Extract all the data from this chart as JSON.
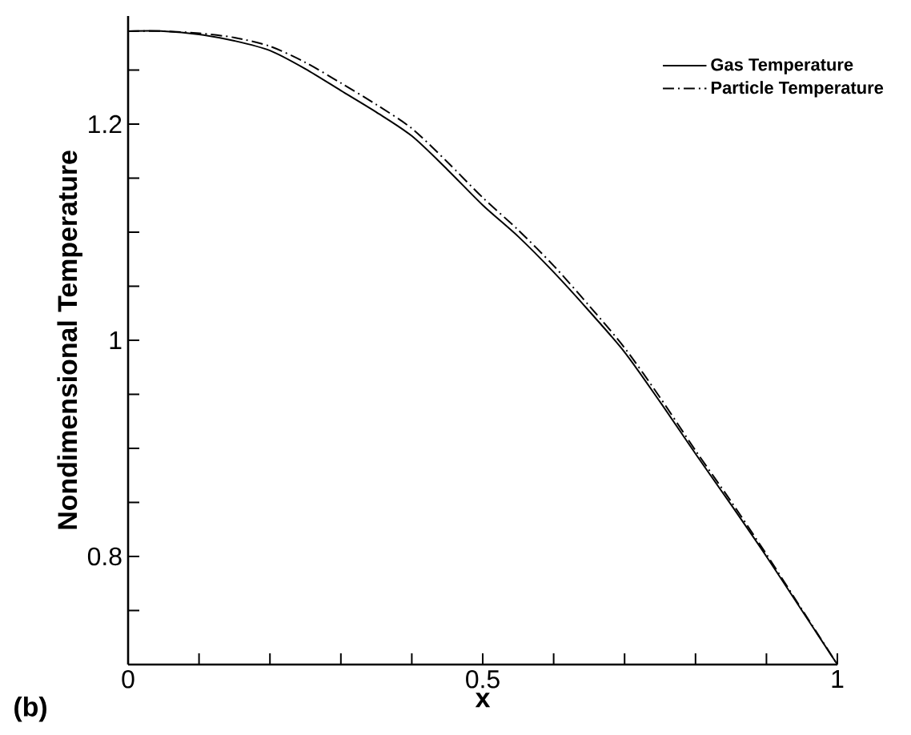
{
  "chart_data": {
    "type": "line",
    "xlabel": "x",
    "ylabel": "Nondimensional Temperature",
    "annotations": [
      "(b)"
    ],
    "x": [
      0,
      0.05,
      0.1,
      0.15,
      0.2,
      0.25,
      0.3,
      0.35,
      0.4,
      0.45,
      0.5,
      0.55,
      0.6,
      0.65,
      0.7,
      0.75,
      0.8,
      0.85,
      0.9,
      0.95,
      1
    ],
    "series": [
      {
        "name": "Gas Temperature",
        "color": "#000000",
        "line_style": "solid",
        "values": [
          1.286,
          1.286,
          1.283,
          1.277,
          1.268,
          1.251,
          1.231,
          1.211,
          1.189,
          1.158,
          1.125,
          1.096,
          1.063,
          1.027,
          0.989,
          0.943,
          0.895,
          0.848,
          0.8,
          0.75,
          0.7
        ]
      },
      {
        "name": "Particle Temperature",
        "color": "#000000",
        "line_style": "dashdot",
        "values": [
          1.286,
          1.286,
          1.284,
          1.28,
          1.272,
          1.257,
          1.238,
          1.218,
          1.196,
          1.165,
          1.132,
          1.102,
          1.069,
          1.032,
          0.993,
          0.947,
          0.898,
          0.851,
          0.802,
          0.751,
          0.7
        ]
      }
    ],
    "xlim": [
      0,
      1
    ],
    "ylim": [
      0.7,
      1.3
    ],
    "xticks": [
      0,
      {
        "value": 0.1,
        "label": null
      },
      {
        "value": 0.2,
        "label": null
      },
      {
        "value": 0.3,
        "label": null
      },
      {
        "value": 0.4,
        "label": null
      },
      0.5,
      {
        "value": 0.6,
        "label": null
      },
      {
        "value": 0.7,
        "label": null
      },
      {
        "value": 0.8,
        "label": null
      },
      {
        "value": 0.9,
        "label": null
      },
      1
    ],
    "yticks": [
      {
        "value": 0.75,
        "label": null
      },
      0.8,
      {
        "value": 0.85,
        "label": null
      },
      {
        "value": 0.9,
        "label": null
      },
      {
        "value": 0.95,
        "label": null
      },
      1,
      {
        "value": 1.05,
        "label": null
      },
      {
        "value": 1.1,
        "label": null
      },
      {
        "value": 1.15,
        "label": null
      },
      1.2,
      {
        "value": 1.25,
        "label": null
      }
    ],
    "legend": "top right",
    "grid": false,
    "marker": "none"
  }
}
